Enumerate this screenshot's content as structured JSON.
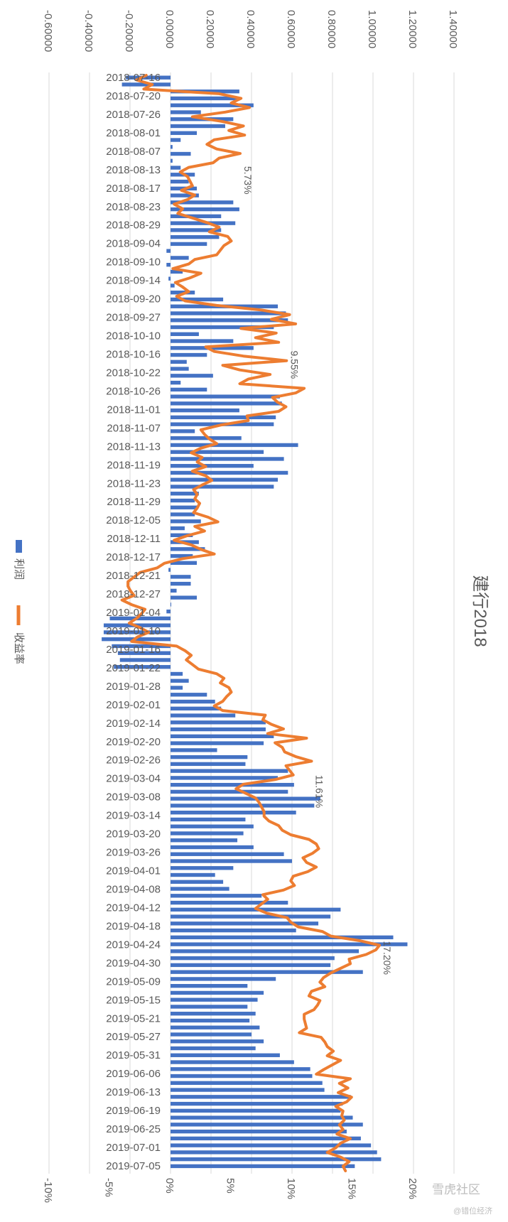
{
  "chart_data": {
    "type": "bar-line",
    "title": "建行2018",
    "orientation": "rotated-90",
    "profit_axis": {
      "range": [
        -0.6,
        1.4
      ],
      "ticks": [
        -0.6,
        -0.4,
        -0.2,
        0.0,
        0.2,
        0.4,
        0.6,
        0.8,
        1.0,
        1.2,
        1.4
      ],
      "tick_labels": [
        "-0.60000",
        "-0.40000",
        "-0.20000",
        "0.00000",
        "0.20000",
        "0.40000",
        "0.60000",
        "0.80000",
        "1.00000",
        "1.20000",
        "1.40000"
      ]
    },
    "return_axis": {
      "range": [
        -10,
        20
      ],
      "ticks": [
        -10,
        -5,
        0,
        5,
        10,
        15,
        20
      ],
      "tick_labels": [
        "-10%",
        "-5%",
        "0%",
        "5%",
        "10%",
        "15%",
        "20%"
      ]
    },
    "grid": true,
    "legend": {
      "placement": "left",
      "items": [
        {
          "name": "利润",
          "color": "#4472c4",
          "kind": "bar"
        },
        {
          "name": "收益率",
          "color": "#ed7d31",
          "kind": "line"
        }
      ]
    },
    "date_labels": [
      "2018-07-16",
      "2018-07-20",
      "2018-07-26",
      "2018-08-01",
      "2018-08-07",
      "2018-08-13",
      "2018-08-17",
      "2018-08-23",
      "2018-08-29",
      "2018-09-04",
      "2018-09-10",
      "2018-09-14",
      "2018-09-20",
      "2018-09-27",
      "2018-10-10",
      "2018-10-16",
      "2018-10-22",
      "2018-10-26",
      "2018-11-01",
      "2018-11-07",
      "2018-11-13",
      "2018-11-19",
      "2018-11-23",
      "2018-11-29",
      "2018-12-05",
      "2018-12-11",
      "2018-12-17",
      "2018-12-21",
      "2018-12-27",
      "2019-01-04",
      "2019-01-10",
      "2019-01-16",
      "2019-01-22",
      "2019-01-28",
      "2019-02-01",
      "2019-02-14",
      "2019-02-20",
      "2019-02-26",
      "2019-03-04",
      "2019-03-08",
      "2019-03-14",
      "2019-03-20",
      "2019-03-26",
      "2019-04-01",
      "2019-04-08",
      "2019-04-12",
      "2019-04-18",
      "2019-04-24",
      "2019-04-30",
      "2019-05-09",
      "2019-05-15",
      "2019-05-21",
      "2019-05-27",
      "2019-05-31",
      "2019-06-06",
      "2019-06-13",
      "2019-06-19",
      "2019-06-25",
      "2019-07-01",
      "2019-07-05"
    ],
    "profit": [
      -0.22,
      -0.24,
      0.34,
      0.33,
      0.41,
      0.15,
      0.31,
      0.27,
      0.13,
      0.05,
      0.01,
      0.1,
      0.01,
      0.05,
      0.12,
      0.09,
      0.13,
      0.14,
      0.31,
      0.34,
      0.25,
      0.32,
      0.25,
      0.24,
      0.18,
      -0.02,
      0.09,
      -0.02,
      0.06,
      -0.01,
      0.02,
      0.12,
      0.26,
      0.53,
      0.57,
      0.58,
      0.51,
      0.14,
      0.31,
      0.41,
      0.18,
      0.08,
      0.09,
      0.21,
      0.05,
      0.18,
      0.54,
      0.55,
      0.34,
      0.52,
      0.51,
      0.12,
      0.35,
      0.63,
      0.46,
      0.56,
      0.41,
      0.58,
      0.53,
      0.51,
      0.14,
      0.12,
      0.13,
      0.12,
      0.15,
      0.07,
      0.11,
      0.14,
      0.17,
      0.11,
      0.13,
      -0.01,
      0.1,
      0.1,
      0.03,
      0.13,
      0.0,
      -0.02,
      -0.3,
      -0.33,
      -0.33,
      -0.34,
      -0.29,
      -0.26,
      -0.25,
      -0.28,
      0.06,
      0.09,
      0.06,
      0.18,
      0.22,
      0.25,
      0.32,
      0.47,
      0.47,
      0.51,
      0.46,
      0.23,
      0.38,
      0.37,
      0.58,
      0.53,
      0.61,
      0.58,
      0.74,
      0.71,
      0.62,
      0.37,
      0.41,
      0.36,
      0.33,
      0.41,
      0.56,
      0.6,
      0.31,
      0.22,
      0.26,
      0.29,
      0.45,
      0.58,
      0.84,
      0.79,
      0.73,
      0.62,
      1.1,
      1.17,
      0.93,
      0.81,
      0.79,
      0.95,
      0.52,
      0.38,
      0.46,
      0.43,
      0.38,
      0.42,
      0.39,
      0.44,
      0.4,
      0.46,
      0.42,
      0.54,
      0.61,
      0.69,
      0.7,
      0.75,
      0.76,
      0.89,
      0.85,
      0.84,
      0.9,
      0.95,
      0.87,
      0.94,
      0.99,
      1.02,
      1.04,
      0.91
    ],
    "return_pct": [
      -2.0,
      -2.8,
      -1.5,
      -2.2,
      4.0,
      5.8,
      5.0,
      6.5,
      4.5,
      1.8,
      4.2,
      6.0,
      4.8,
      6.1,
      3.6,
      3.0,
      3.8,
      5.73,
      4.0,
      3.5,
      1.5,
      0.8,
      1.4,
      1.6,
      1.8,
      0.9,
      2.0,
      1.4,
      0.3,
      1.0,
      0.6,
      1.8,
      3.0,
      4.0,
      3.2,
      4.7,
      5.0,
      4.4,
      4.1,
      3.8,
      2.0,
      1.5,
      0.2,
      2.5,
      1.6,
      0.4,
      1.0,
      1.5,
      0.5,
      1.2,
      3.8,
      7.5,
      9.8,
      8.3,
      10.3,
      5.8,
      8.7,
      7.0,
      8.9,
      2.9,
      3.6,
      6.0,
      9.55,
      4.3,
      5.7,
      8.2,
      6.4,
      5.7,
      11.0,
      10.3,
      8.4,
      8.8,
      9.5,
      8.9,
      6.3,
      6.4,
      4.1,
      2.5,
      2.8,
      3.2,
      3.8,
      2.5,
      1.7,
      2.6,
      2.2,
      2.9,
      1.8,
      2.9,
      3.4,
      2.6,
      1.9,
      2.2,
      2.0,
      2.4,
      2.2,
      1.9,
      3.1,
      3.9,
      2.0,
      2.8,
      1.4,
      0.3,
      1.7,
      2.5,
      3.6,
      1.0,
      -0.5,
      -1.1,
      -2.5,
      -3.0,
      -3.5,
      -3.5,
      -3.3,
      -3.0,
      -4.0,
      -3.2,
      -2.1,
      -2.4,
      -2.8,
      -3.4,
      -2.5,
      -1.8,
      -2.7,
      -3.2,
      0.5,
      1.2,
      1.7,
      1.3,
      1.8,
      2.3,
      3.8,
      4.4,
      4.1,
      4.8,
      5.0,
      4.6,
      4.3,
      3.6,
      4.3,
      7.8,
      7.6,
      8.3,
      9.3,
      8.0,
      11.2,
      8.6,
      9.2,
      9.4,
      10.3,
      11.61,
      9.5,
      9.8,
      10.1,
      8.6,
      6.0,
      5.4,
      6.2,
      7.0,
      7.3,
      7.5,
      7.7,
      7.7,
      8.1,
      8.9,
      9.2,
      9.9,
      11.4,
      12.0,
      12.2,
      11.7,
      10.9,
      11.2,
      12.0,
      11.3,
      10.1,
      9.9,
      10.2,
      9.3,
      7.6,
      8.0,
      7.5,
      7.0,
      7.9,
      9.6,
      9.9,
      10.5,
      12.5,
      13.2,
      15.6,
      17.2,
      16.9,
      16.1,
      14.7,
      14.8,
      14.0,
      13.2,
      12.6,
      12.3,
      12.7,
      11.6,
      11.4,
      12.3,
      12.1,
      11.8,
      11.0,
      11.0,
      11.1,
      11.2,
      10.6,
      12.4,
      12.7,
      12.9,
      13.4,
      12.9,
      14.0,
      13.3,
      12.6,
      12.0,
      14.8,
      13.9,
      14.6,
      13.8,
      14.9,
      14.5,
      13.6,
      14.2,
      14.1,
      14.3,
      13.9,
      14.2,
      13.7,
      14.8,
      14.0,
      13.6,
      12.9,
      14.0,
      14.7,
      14.2,
      14.4
    ],
    "annotations": [
      {
        "text": "5.73%",
        "at_label": "2018-08-13"
      },
      {
        "text": "9.55%",
        "at_label": "2018-10-16"
      },
      {
        "text": "11.61%",
        "at_label": "2019-03-04"
      },
      {
        "text": "17.20%",
        "at_label": "2019-04-24"
      }
    ],
    "bar_color": "#4472c4",
    "line_color": "#ed7d31"
  },
  "watermark": {
    "main": "雪虎社区",
    "sub": "@错位经济"
  }
}
